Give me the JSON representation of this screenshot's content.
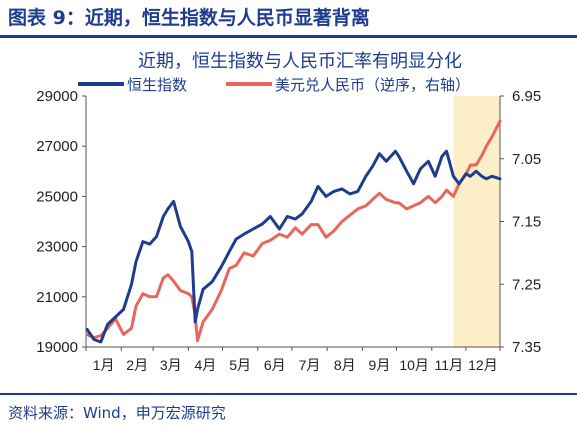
{
  "figure_label": "图表 9：近期，恒生指数与人民币显著背离",
  "source": "资料来源：Wind，申万宏源研究",
  "colors": {
    "hsi": "#1f3d8f",
    "cny": "#e8665a",
    "highlight": "#fcefc8",
    "axis": "#1f3d8f"
  },
  "chart_data": {
    "type": "line",
    "title": "近期，恒生指数与人民币汇率有明显分化",
    "x_tick_labels": [
      "1月",
      "2月",
      "3月",
      "4月",
      "5月",
      "6月",
      "7月",
      "8月",
      "9月",
      "10月",
      "11月",
      "12月"
    ],
    "x_range": [
      "2025-01-01",
      "2025-12-31"
    ],
    "highlight_range": [
      "2025-11-20",
      "2025-12-31"
    ],
    "grid": false,
    "legend": "top",
    "y_left": {
      "ticks": [
        "29000",
        "27000",
        "25000",
        "23000",
        "21000",
        "19000"
      ],
      "range": [
        19000,
        29000
      ]
    },
    "y_right": {
      "ticks": [
        "6.95",
        "7.05",
        "7.15",
        "7.25",
        "7.35"
      ],
      "range": [
        6.95,
        7.35
      ],
      "inverted": true
    },
    "series": [
      {
        "name": "恒生指数",
        "axis": "left",
        "x": [
          "2025-01-02",
          "2025-01-08",
          "2025-01-14",
          "2025-01-20",
          "2025-01-27",
          "2025-02-03",
          "2025-02-10",
          "2025-02-14",
          "2025-02-20",
          "2025-02-26",
          "2025-03-04",
          "2025-03-10",
          "2025-03-14",
          "2025-03-19",
          "2025-03-25",
          "2025-04-01",
          "2025-04-04",
          "2025-04-07",
          "2025-04-09",
          "2025-04-14",
          "2025-04-22",
          "2025-04-30",
          "2025-05-07",
          "2025-05-13",
          "2025-05-20",
          "2025-05-28",
          "2025-06-05",
          "2025-06-12",
          "2025-06-20",
          "2025-06-27",
          "2025-07-04",
          "2025-07-10",
          "2025-07-18",
          "2025-07-24",
          "2025-07-31",
          "2025-08-07",
          "2025-08-14",
          "2025-08-21",
          "2025-08-28",
          "2025-09-04",
          "2025-09-10",
          "2025-09-16",
          "2025-09-22",
          "2025-09-30",
          "2025-10-03",
          "2025-10-10",
          "2025-10-16",
          "2025-10-22",
          "2025-10-29",
          "2025-11-04",
          "2025-11-10",
          "2025-11-14",
          "2025-11-20",
          "2025-11-25",
          "2025-12-01",
          "2025-12-05",
          "2025-12-10",
          "2025-12-15",
          "2025-12-19",
          "2025-12-24",
          "2025-12-31"
        ],
        "values": [
          19700,
          19300,
          19200,
          19900,
          20200,
          20500,
          21500,
          22400,
          23200,
          23100,
          23400,
          24200,
          24500,
          24800,
          23800,
          23200,
          22800,
          20000,
          20500,
          21300,
          21600,
          22200,
          22800,
          23300,
          23500,
          23700,
          23900,
          24200,
          23700,
          24200,
          24100,
          24300,
          24800,
          25400,
          25000,
          25200,
          25300,
          25100,
          25200,
          25800,
          26200,
          26700,
          26400,
          26800,
          26600,
          26000,
          25500,
          26100,
          26400,
          25800,
          26600,
          26800,
          25800,
          25500,
          25900,
          25800,
          26000,
          25800,
          25700,
          25800,
          25700
        ]
      },
      {
        "name": "美元兑人民币（逆序，右轴）",
        "axis": "right",
        "x": [
          "2025-01-02",
          "2025-01-08",
          "2025-01-14",
          "2025-01-20",
          "2025-01-27",
          "2025-02-03",
          "2025-02-10",
          "2025-02-14",
          "2025-02-20",
          "2025-02-26",
          "2025-03-04",
          "2025-03-10",
          "2025-03-14",
          "2025-03-19",
          "2025-03-25",
          "2025-04-01",
          "2025-04-04",
          "2025-04-07",
          "2025-04-09",
          "2025-04-14",
          "2025-04-22",
          "2025-04-30",
          "2025-05-07",
          "2025-05-13",
          "2025-05-20",
          "2025-05-28",
          "2025-06-05",
          "2025-06-12",
          "2025-06-20",
          "2025-06-27",
          "2025-07-04",
          "2025-07-10",
          "2025-07-18",
          "2025-07-24",
          "2025-07-31",
          "2025-08-07",
          "2025-08-14",
          "2025-08-21",
          "2025-08-28",
          "2025-09-04",
          "2025-09-10",
          "2025-09-16",
          "2025-09-22",
          "2025-09-30",
          "2025-10-03",
          "2025-10-10",
          "2025-10-16",
          "2025-10-22",
          "2025-10-29",
          "2025-11-04",
          "2025-11-10",
          "2025-11-14",
          "2025-11-20",
          "2025-11-25",
          "2025-12-01",
          "2025-12-05",
          "2025-12-10",
          "2025-12-15",
          "2025-12-19",
          "2025-12-24",
          "2025-12-31"
        ],
        "values": [
          7.33,
          7.335,
          7.332,
          7.32,
          7.305,
          7.33,
          7.32,
          7.285,
          7.265,
          7.27,
          7.27,
          7.24,
          7.235,
          7.245,
          7.26,
          7.265,
          7.27,
          7.3,
          7.34,
          7.31,
          7.29,
          7.26,
          7.225,
          7.22,
          7.2,
          7.205,
          7.185,
          7.18,
          7.17,
          7.175,
          7.16,
          7.17,
          7.155,
          7.155,
          7.175,
          7.165,
          7.15,
          7.14,
          7.13,
          7.125,
          7.115,
          7.105,
          7.115,
          7.12,
          7.12,
          7.13,
          7.125,
          7.12,
          7.11,
          7.12,
          7.11,
          7.1,
          7.11,
          7.09,
          7.075,
          7.06,
          7.06,
          7.045,
          7.03,
          7.015,
          6.99
        ]
      }
    ]
  }
}
